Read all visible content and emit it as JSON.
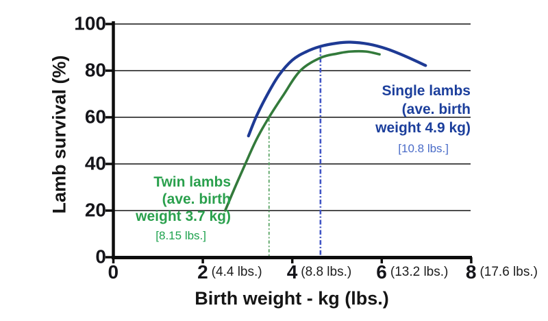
{
  "chart_data": {
    "type": "line",
    "title": "",
    "xlabel": "Birth weight - kg (lbs.)",
    "ylabel": "Lamb survival (%)",
    "xlim": [
      0,
      8
    ],
    "ylim": [
      0,
      100
    ],
    "grid": "horizontal gridlines at 20,40,60,80,100",
    "legend_position": "labels beside curves",
    "x_ticks": [
      {
        "kg": 0,
        "label": "0",
        "lbs": ""
      },
      {
        "kg": 2,
        "label": "2",
        "lbs": "(4.4 lbs.)"
      },
      {
        "kg": 4,
        "label": "4",
        "lbs": "(8.8 lbs.)"
      },
      {
        "kg": 6,
        "label": "6",
        "lbs": "(13.2 lbs.)"
      },
      {
        "kg": 8,
        "label": "8",
        "lbs": "(17.6 lbs.)"
      }
    ],
    "y_ticks": [
      0,
      20,
      40,
      60,
      80,
      100
    ],
    "series": [
      {
        "name": "Single lambs",
        "color": "#1e3a94",
        "width": 4.2,
        "points": [
          [
            3.02,
            52
          ],
          [
            3.2,
            60.5
          ],
          [
            3.45,
            70
          ],
          [
            3.7,
            78
          ],
          [
            4.0,
            84.5
          ],
          [
            4.3,
            88
          ],
          [
            4.63,
            90.4
          ],
          [
            5.0,
            91.8
          ],
          [
            5.3,
            92.2
          ],
          [
            5.7,
            91.4
          ],
          [
            6.1,
            89.4
          ],
          [
            6.5,
            86.4
          ],
          [
            6.98,
            82.2
          ]
        ]
      },
      {
        "name": "Twin lambs",
        "color": "#337a3b",
        "width": 3.6,
        "points": [
          [
            2.5,
            20
          ],
          [
            2.72,
            30
          ],
          [
            2.95,
            40
          ],
          [
            3.2,
            50.5
          ],
          [
            3.48,
            60
          ],
          [
            3.8,
            69.5
          ],
          [
            4.18,
            80
          ],
          [
            4.63,
            85.5
          ],
          [
            5.0,
            87.3
          ],
          [
            5.3,
            88.2
          ],
          [
            5.65,
            88.2
          ],
          [
            5.95,
            87
          ]
        ]
      }
    ],
    "avg_markers": [
      {
        "series": "Twin lambs",
        "value_kg": 3.7,
        "plot_x_kg": 3.48,
        "top_pct": 60,
        "color": "#58a464",
        "style": "dash-dot",
        "width": 1.8
      },
      {
        "series": "Single lambs",
        "value_kg": 4.9,
        "plot_x_kg": 4.63,
        "top_pct": 90.4,
        "color": "#4054c4",
        "style": "dash-dot",
        "width": 2.6
      }
    ],
    "annotations": [
      {
        "id": "single",
        "lines": [
          "Single lambs",
          "(ave. birth",
          "weight 4.9 kg)"
        ],
        "bracket": "[10.8 lbs.]",
        "color": "#1c3f9c",
        "bracket_color": "#4a6cc8"
      },
      {
        "id": "twin",
        "lines": [
          "Twin lambs",
          "(ave. birth",
          "weight 3.7 kg)"
        ],
        "bracket": "[8.15 lbs.]",
        "color": "#2aa04d",
        "bracket_color": "#1ea24e"
      }
    ],
    "colors": {
      "axis": "#0d0d0d",
      "gridline": "#4d4d4d",
      "tick_text": "#15151a"
    }
  }
}
